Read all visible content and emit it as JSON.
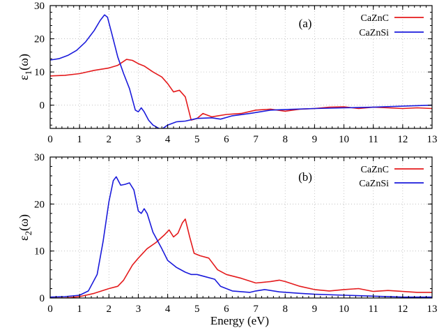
{
  "xlabel": "Energy (eV)",
  "chart_data": [
    {
      "type": "line",
      "panel_label": "(a)",
      "ylabel_main": "ε",
      "ylabel_sub": "1",
      "ylabel_suffix": "(ω)",
      "xlim": [
        0,
        13
      ],
      "ylim": [
        -7,
        30
      ],
      "x_ticks": [
        0,
        1,
        2,
        3,
        4,
        5,
        6,
        7,
        8,
        9,
        10,
        11,
        12,
        13
      ],
      "x_tick_labels": [
        "0",
        "1",
        "2",
        "3",
        "4",
        "5",
        "6",
        "7",
        "8",
        "9",
        "10",
        "11",
        "12",
        "13"
      ],
      "y_ticks": [
        0,
        10,
        20,
        30
      ],
      "y_tick_labels": [
        "0",
        "10",
        "20",
        "30"
      ],
      "grid": true,
      "legend_position": "top-right",
      "series": [
        {
          "name": "CaZnC",
          "color": "#e41a1c",
          "x": [
            0,
            0.5,
            1.0,
            1.5,
            2.0,
            2.3,
            2.6,
            2.8,
            3.0,
            3.2,
            3.5,
            3.8,
            4.0,
            4.2,
            4.4,
            4.6,
            4.8,
            5.0,
            5.2,
            5.5,
            6.0,
            6.5,
            7.0,
            7.5,
            8.0,
            8.5,
            9.0,
            9.5,
            10.0,
            10.5,
            11.0,
            11.5,
            12.0,
            12.5,
            13.0
          ],
          "values": [
            8.8,
            9.0,
            9.5,
            10.5,
            11.2,
            12.0,
            13.8,
            13.5,
            12.5,
            11.8,
            10.0,
            8.5,
            6.5,
            4.0,
            4.5,
            2.5,
            -4.5,
            -4.0,
            -2.5,
            -3.5,
            -2.8,
            -2.5,
            -1.5,
            -1.2,
            -1.8,
            -1.2,
            -1.0,
            -0.6,
            -0.5,
            -1.0,
            -0.6,
            -0.8,
            -1.0,
            -0.8,
            -1.0
          ]
        },
        {
          "name": "CaZnSi",
          "color": "#1a1adb",
          "x": [
            0,
            0.3,
            0.6,
            0.9,
            1.2,
            1.5,
            1.7,
            1.85,
            1.95,
            2.1,
            2.3,
            2.5,
            2.7,
            2.9,
            3.0,
            3.1,
            3.2,
            3.35,
            3.5,
            3.7,
            3.8,
            4.0,
            4.3,
            4.6,
            5.0,
            5.5,
            5.8,
            6.2,
            6.8,
            7.5,
            8.0,
            9.0,
            10.0,
            11.0,
            12.0,
            13.0
          ],
          "values": [
            13.6,
            14.0,
            15.0,
            16.5,
            19.0,
            22.5,
            25.5,
            27.2,
            26.5,
            21.5,
            14.5,
            9.5,
            5.0,
            -1.5,
            -2.0,
            -0.8,
            -2.0,
            -4.5,
            -6.0,
            -7.0,
            -7.2,
            -6.0,
            -5.0,
            -4.8,
            -4.0,
            -3.8,
            -4.2,
            -3.2,
            -2.5,
            -1.5,
            -1.3,
            -1.0,
            -0.8,
            -0.6,
            -0.3,
            0.0
          ]
        }
      ]
    },
    {
      "type": "line",
      "panel_label": "(b)",
      "ylabel_main": "ε",
      "ylabel_sub": "2",
      "ylabel_suffix": "(ω)",
      "xlim": [
        0,
        13
      ],
      "ylim": [
        0,
        30
      ],
      "x_ticks": [
        0,
        1,
        2,
        3,
        4,
        5,
        6,
        7,
        8,
        9,
        10,
        11,
        12,
        13
      ],
      "x_tick_labels": [
        "0",
        "1",
        "2",
        "3",
        "4",
        "5",
        "6",
        "7",
        "8",
        "9",
        "10",
        "11",
        "12",
        "13"
      ],
      "y_ticks": [
        0,
        10,
        20,
        30
      ],
      "y_tick_labels": [
        "0",
        "10",
        "20",
        "30"
      ],
      "grid": true,
      "legend_position": "top-right",
      "series": [
        {
          "name": "CaZnC",
          "color": "#e41a1c",
          "x": [
            0,
            0.5,
            1.0,
            1.5,
            2.0,
            2.3,
            2.5,
            2.8,
            3.0,
            3.3,
            3.6,
            3.9,
            4.05,
            4.2,
            4.35,
            4.5,
            4.6,
            4.75,
            4.9,
            5.1,
            5.4,
            5.7,
            6.0,
            6.5,
            7.0,
            7.5,
            7.8,
            8.0,
            8.5,
            9.0,
            9.5,
            10.0,
            10.5,
            11.0,
            11.5,
            12.0,
            12.5,
            13.0
          ],
          "values": [
            0.0,
            0.0,
            0.3,
            1.0,
            2.0,
            2.5,
            3.8,
            7.0,
            8.5,
            10.5,
            11.8,
            13.5,
            14.5,
            13.0,
            13.8,
            16.0,
            16.8,
            13.0,
            9.5,
            9.0,
            8.5,
            6.0,
            5.0,
            4.2,
            3.2,
            3.5,
            3.8,
            3.5,
            2.5,
            1.8,
            1.5,
            1.8,
            2.0,
            1.4,
            1.6,
            1.4,
            1.2,
            1.2
          ]
        },
        {
          "name": "CaZnSi",
          "color": "#1a1adb",
          "x": [
            0,
            0.5,
            1.0,
            1.3,
            1.6,
            1.8,
            2.0,
            2.15,
            2.25,
            2.4,
            2.55,
            2.7,
            2.85,
            3.0,
            3.1,
            3.2,
            3.3,
            3.5,
            3.8,
            4.0,
            4.3,
            4.6,
            4.8,
            5.0,
            5.3,
            5.6,
            5.8,
            6.2,
            6.8,
            7.0,
            7.3,
            7.8,
            8.5,
            9.0,
            10.0,
            11.0,
            12.0,
            13.0
          ],
          "values": [
            0.2,
            0.3,
            0.6,
            1.5,
            5.0,
            12.0,
            20.5,
            25.0,
            25.8,
            24.0,
            24.2,
            24.5,
            23.0,
            18.5,
            18.0,
            19.0,
            18.0,
            14.0,
            10.5,
            8.0,
            6.5,
            5.5,
            5.0,
            5.0,
            4.5,
            4.0,
            2.5,
            1.5,
            1.2,
            1.5,
            1.8,
            1.3,
            1.0,
            0.8,
            0.6,
            0.4,
            0.2,
            0.2
          ]
        }
      ]
    }
  ]
}
